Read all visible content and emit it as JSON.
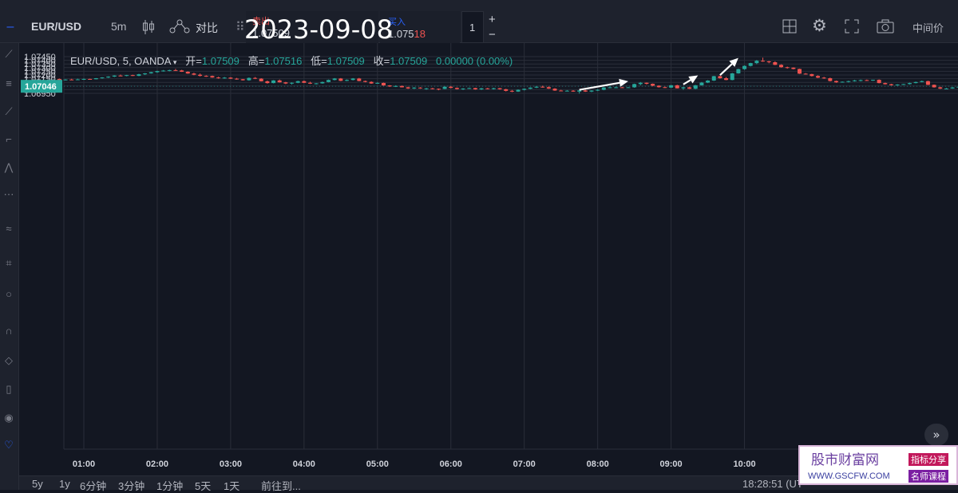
{
  "toolbar": {
    "symbol": "EUR/USD",
    "interval": "5m",
    "compare_label": "对比",
    "sell_label": "卖出",
    "sell_price": "1.07509",
    "buy_label": "买入",
    "buy_price_main": "1.075",
    "buy_price_tail": "18",
    "quantity": "1",
    "plus": "+",
    "minus": "−",
    "price_type": "中间价"
  },
  "overlay_date": "2023-09-08",
  "legend": {
    "symbol": "EUR/USD, 5, OANDA",
    "open_label": "开=",
    "open": "1.07509",
    "high_label": "高=",
    "high": "1.07516",
    "low_label": "低=",
    "low": "1.07509",
    "close_label": "收=",
    "close": "1.07509",
    "change": "0.00000 (0.00%)"
  },
  "current_price_label": "1.07046",
  "bottom": {
    "ranges": [
      "5y",
      "1y",
      "6分钟",
      "3分钟",
      "1分钟",
      "5天",
      "1天"
    ],
    "goto": "前往到...",
    "clock": "18:28:51 (UT"
  },
  "watermark": {
    "title": "股市财富网",
    "url": "WWW.GSCFW.COM",
    "badge1": "指标分享",
    "badge2": "名师课程"
  },
  "colors": {
    "up": "#26a69a",
    "down": "#ef5350",
    "background": "#131722",
    "grid": "#2a2e39",
    "arrow": "#ffffff"
  },
  "chart_data": {
    "type": "candlestick",
    "y_ticks": [
      "1.07450",
      "1.07400",
      "1.07350",
      "1.07300",
      "1.07250",
      "1.07200",
      "1.07150",
      "1.07100",
      "1.07050",
      "1.07000",
      "1.06950"
    ],
    "x_ticks": [
      "01:00",
      "02:00",
      "03:00",
      "04:00",
      "05:00",
      "06:00",
      "07:00",
      "08:00",
      "09:00",
      "10:00"
    ],
    "ylim": [
      1.0693,
      1.0746
    ],
    "grid": true,
    "bar_interval_minutes": 5,
    "start_time": "00:40",
    "candles": [
      [
        1.07147,
        1.07152,
        1.07128,
        1.0713
      ],
      [
        1.0713,
        1.07142,
        1.07126,
        1.07138
      ],
      [
        1.07138,
        1.07148,
        1.0713,
        1.07136
      ],
      [
        1.07136,
        1.0715,
        1.07132,
        1.0714
      ],
      [
        1.0714,
        1.07152,
        1.07134,
        1.07146
      ],
      [
        1.07146,
        1.0715,
        1.07138,
        1.07142
      ],
      [
        1.07142,
        1.07158,
        1.0714,
        1.07156
      ],
      [
        1.07156,
        1.0717,
        1.0715,
        1.07166
      ],
      [
        1.07166,
        1.07182,
        1.0716,
        1.07178
      ],
      [
        1.07178,
        1.07196,
        1.07172,
        1.07192
      ],
      [
        1.07192,
        1.07206,
        1.07184,
        1.0719
      ],
      [
        1.0719,
        1.07202,
        1.07182,
        1.07198
      ],
      [
        1.07198,
        1.07204,
        1.07186,
        1.07188
      ],
      [
        1.07188,
        1.07216,
        1.07184,
        1.0721
      ],
      [
        1.0721,
        1.07226,
        1.072,
        1.07222
      ],
      [
        1.07222,
        1.07244,
        1.07218,
        1.07238
      ],
      [
        1.07238,
        1.07258,
        1.0723,
        1.07254
      ],
      [
        1.07254,
        1.07268,
        1.07246,
        1.0726
      ],
      [
        1.0726,
        1.07272,
        1.0725,
        1.07266
      ],
      [
        1.07266,
        1.07284,
        1.07258,
        1.07262
      ],
      [
        1.07262,
        1.0727,
        1.07242,
        1.07244
      ],
      [
        1.07244,
        1.0725,
        1.07216,
        1.0722
      ],
      [
        1.0722,
        1.0723,
        1.07196,
        1.07204
      ],
      [
        1.07204,
        1.0722,
        1.0718,
        1.07188
      ],
      [
        1.07188,
        1.07196,
        1.07174,
        1.07186
      ],
      [
        1.07186,
        1.07192,
        1.07162,
        1.07166
      ],
      [
        1.07166,
        1.07176,
        1.0715,
        1.07158
      ],
      [
        1.07158,
        1.07172,
        1.0715,
        1.07164
      ],
      [
        1.07164,
        1.0717,
        1.07146,
        1.0715
      ],
      [
        1.0715,
        1.0716,
        1.07136,
        1.07142
      ],
      [
        1.07142,
        1.07146,
        1.07124,
        1.07128
      ],
      [
        1.07128,
        1.07166,
        1.07122,
        1.0716
      ],
      [
        1.0716,
        1.07172,
        1.07144,
        1.0715
      ],
      [
        1.0715,
        1.07156,
        1.07112,
        1.07114
      ],
      [
        1.07114,
        1.07124,
        1.07082,
        1.0709
      ],
      [
        1.0709,
        1.0713,
        1.07086,
        1.07126
      ],
      [
        1.07126,
        1.07138,
        1.07096,
        1.071
      ],
      [
        1.071,
        1.07106,
        1.07076,
        1.07084
      ],
      [
        1.07084,
        1.071,
        1.0707,
        1.07094
      ],
      [
        1.07094,
        1.07122,
        1.07088,
        1.07116
      ],
      [
        1.07116,
        1.07124,
        1.0709,
        1.07094
      ],
      [
        1.07094,
        1.07108,
        1.07078,
        1.07082
      ],
      [
        1.07082,
        1.0709,
        1.07072,
        1.07086
      ],
      [
        1.07086,
        1.0711,
        1.07082,
        1.07104
      ],
      [
        1.07104,
        1.07138,
        1.071,
        1.07132
      ],
      [
        1.07132,
        1.07158,
        1.07126,
        1.07152
      ],
      [
        1.07152,
        1.07158,
        1.07116,
        1.0712
      ],
      [
        1.0712,
        1.0714,
        1.07116,
        1.07132
      ],
      [
        1.07132,
        1.07158,
        1.07126,
        1.07152
      ],
      [
        1.07152,
        1.0716,
        1.07114,
        1.07118
      ],
      [
        1.07118,
        1.07124,
        1.071,
        1.07106
      ],
      [
        1.07106,
        1.07114,
        1.0708,
        1.07084
      ],
      [
        1.07084,
        1.071,
        1.0708,
        1.07092
      ],
      [
        1.07092,
        1.07096,
        1.07054,
        1.07058
      ],
      [
        1.07058,
        1.07062,
        1.07038,
        1.07044
      ],
      [
        1.07044,
        1.0706,
        1.07036,
        1.0705
      ],
      [
        1.0705,
        1.07056,
        1.0703,
        1.07032
      ],
      [
        1.07032,
        1.0704,
        1.0701,
        1.07016
      ],
      [
        1.07016,
        1.07034,
        1.07008,
        1.07028
      ],
      [
        1.07028,
        1.07034,
        1.07012,
        1.07018
      ],
      [
        1.07018,
        1.07024,
        1.07,
        1.07018
      ],
      [
        1.07018,
        1.07024,
        1.07004,
        1.07012
      ],
      [
        1.07012,
        1.07016,
        1.06992,
        1.0701
      ],
      [
        1.0701,
        1.07044,
        1.07006,
        1.0704
      ],
      [
        1.0704,
        1.07048,
        1.07018,
        1.07024
      ],
      [
        1.07024,
        1.0703,
        1.07002,
        1.07008
      ],
      [
        1.07008,
        1.0702,
        1.06996,
        1.07016
      ],
      [
        1.07016,
        1.07028,
        1.0701,
        1.07022
      ],
      [
        1.07022,
        1.07026,
        1.07,
        1.07004
      ],
      [
        1.07004,
        1.07024,
        1.06996,
        1.07018
      ],
      [
        1.07018,
        1.07024,
        1.07004,
        1.07008
      ],
      [
        1.07008,
        1.07026,
        1.07002,
        1.0702
      ],
      [
        1.0702,
        1.07024,
        1.07,
        1.07006
      ],
      [
        1.07006,
        1.07012,
        1.06976,
        1.06984
      ],
      [
        1.06984,
        1.06996,
        1.06966,
        1.06974
      ],
      [
        1.06974,
        1.07004,
        1.0697,
        1.06998
      ],
      [
        1.06998,
        1.07016,
        1.0699,
        1.07012
      ],
      [
        1.07012,
        1.07032,
        1.07006,
        1.07028
      ],
      [
        1.07028,
        1.07046,
        1.07022,
        1.0704
      ],
      [
        1.0704,
        1.07054,
        1.07028,
        1.07034
      ],
      [
        1.07034,
        1.07044,
        1.0701,
        1.07014
      ],
      [
        1.07014,
        1.0702,
        1.06984,
        1.06988
      ],
      [
        1.06988,
        1.06998,
        1.06978,
        1.06984
      ],
      [
        1.06984,
        1.06994,
        1.06976,
        1.06986
      ],
      [
        1.06986,
        1.06994,
        1.06972,
        1.06974
      ],
      [
        1.06974,
        1.06992,
        1.06946,
        1.0699
      ],
      [
        1.0699,
        1.06998,
        1.0697,
        1.06974
      ],
      [
        1.06974,
        1.06992,
        1.06966,
        1.06988
      ],
      [
        1.06988,
        1.07008,
        1.06982,
        1.06998
      ],
      [
        1.06998,
        1.07034,
        1.06992,
        1.0703
      ],
      [
        1.0703,
        1.07046,
        1.0702,
        1.07032
      ],
      [
        1.07032,
        1.07042,
        1.0702,
        1.07032
      ],
      [
        1.07032,
        1.07038,
        1.07024,
        1.0703
      ],
      [
        1.0703,
        1.07036,
        1.07024,
        1.07032
      ],
      [
        1.07032,
        1.07082,
        1.07026,
        1.07076
      ],
      [
        1.07076,
        1.07104,
        1.0706,
        1.07094
      ],
      [
        1.07094,
        1.07098,
        1.0707,
        1.0708
      ],
      [
        1.0708,
        1.07084,
        1.07046,
        1.07054
      ],
      [
        1.07054,
        1.0706,
        1.07028,
        1.07034
      ],
      [
        1.07034,
        1.07042,
        1.07022,
        1.07028
      ],
      [
        1.07028,
        1.07064,
        1.07022,
        1.0706
      ],
      [
        1.0706,
        1.07066,
        1.07016,
        1.07018
      ],
      [
        1.07018,
        1.07038,
        1.06998,
        1.07032
      ],
      [
        1.07032,
        1.0704,
        1.07008,
        1.07012
      ],
      [
        1.07012,
        1.07064,
        1.07006,
        1.0706
      ],
      [
        1.0706,
        1.07104,
        1.07056,
        1.07096
      ],
      [
        1.07096,
        1.0713,
        1.0709,
        1.07124
      ],
      [
        1.07124,
        1.07188,
        1.07118,
        1.07184
      ],
      [
        1.07184,
        1.0719,
        1.0715,
        1.07156
      ],
      [
        1.07156,
        1.07172,
        1.07128,
        1.07132
      ],
      [
        1.07132,
        1.07228,
        1.07128,
        1.07222
      ],
      [
        1.07222,
        1.07286,
        1.07218,
        1.0728
      ],
      [
        1.0728,
        1.0733,
        1.0727,
        1.07324
      ],
      [
        1.07324,
        1.07366,
        1.07316,
        1.07362
      ],
      [
        1.07362,
        1.07404,
        1.07348,
        1.07394
      ],
      [
        1.07394,
        1.07436,
        1.0738,
        1.07386
      ],
      [
        1.07386,
        1.07392,
        1.0736,
        1.07374
      ],
      [
        1.07374,
        1.07386,
        1.07334,
        1.07338
      ],
      [
        1.07338,
        1.07346,
        1.073,
        1.07306
      ],
      [
        1.07306,
        1.07314,
        1.07286,
        1.073
      ],
      [
        1.073,
        1.07304,
        1.07276,
        1.07282
      ],
      [
        1.07282,
        1.07286,
        1.07214,
        1.07218
      ],
      [
        1.07218,
        1.07226,
        1.07208,
        1.07212
      ],
      [
        1.07212,
        1.07216,
        1.0718,
        1.07186
      ],
      [
        1.07186,
        1.07196,
        1.07158,
        1.07164
      ],
      [
        1.07164,
        1.07174,
        1.07148,
        1.07156
      ],
      [
        1.07156,
        1.07164,
        1.07112,
        1.07118
      ],
      [
        1.07118,
        1.07124,
        1.07094,
        1.071
      ],
      [
        1.071,
        1.07112,
        1.07096,
        1.07108
      ],
      [
        1.07108,
        1.07122,
        1.07098,
        1.07116
      ],
      [
        1.07116,
        1.07134,
        1.0711,
        1.07126
      ],
      [
        1.07126,
        1.07138,
        1.07112,
        1.0713
      ],
      [
        1.0713,
        1.07138,
        1.07118,
        1.07124
      ],
      [
        1.07124,
        1.07136,
        1.0712,
        1.07134
      ],
      [
        1.07134,
        1.0714,
        1.07086,
        1.0709
      ],
      [
        1.0709,
        1.07096,
        1.0707,
        1.07074
      ],
      [
        1.07074,
        1.0708,
        1.07056,
        1.0706
      ],
      [
        1.0706,
        1.07074,
        1.07054,
        1.0707
      ],
      [
        1.0707,
        1.0708,
        1.07066,
        1.07076
      ],
      [
        1.07076,
        1.07096,
        1.0707,
        1.0709
      ],
      [
        1.0709,
        1.0711,
        1.07086,
        1.07104
      ],
      [
        1.07104,
        1.07124,
        1.071,
        1.07116
      ],
      [
        1.07116,
        1.07122,
        1.07062,
        1.07066
      ],
      [
        1.07066,
        1.0707,
        1.07028,
        1.07032
      ],
      [
        1.07032,
        1.0704,
        1.07008,
        1.07014
      ],
      [
        1.07014,
        1.07024,
        1.07008,
        1.07016
      ],
      [
        1.07016,
        1.07036,
        1.07012,
        1.0703
      ],
      [
        1.0703,
        1.07046,
        1.07024,
        1.0704
      ]
    ],
    "annotations": [
      {
        "type": "arrow",
        "from_time": "07:45",
        "from_price": 1.06998,
        "to_time": "08:25",
        "to_price": 1.07114
      },
      {
        "type": "arrow",
        "from_time": "09:10",
        "from_price": 1.07072,
        "to_time": "09:22",
        "to_price": 1.07194
      },
      {
        "type": "arrow",
        "from_time": "09:40",
        "from_price": 1.07198,
        "to_time": "09:55",
        "to_price": 1.07432
      }
    ]
  }
}
